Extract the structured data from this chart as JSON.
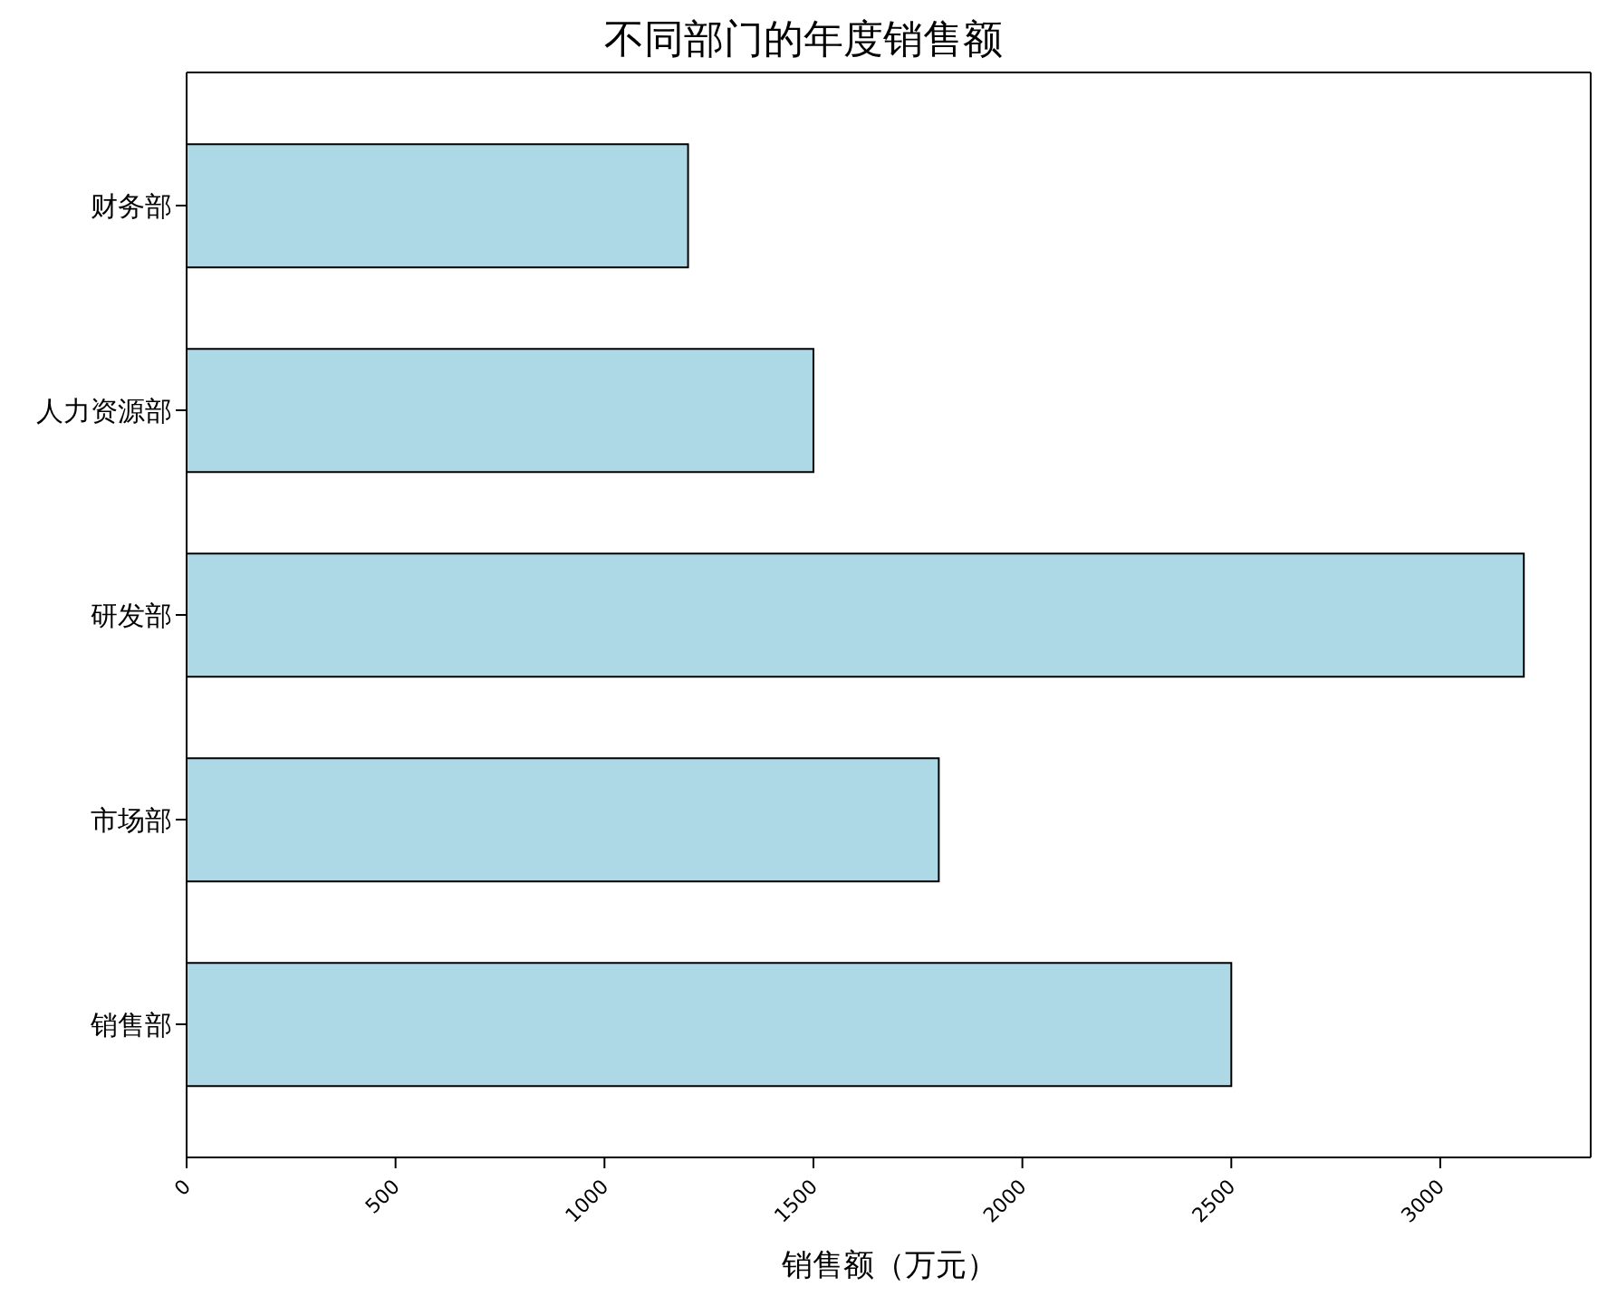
{
  "chart_data": {
    "type": "bar",
    "orientation": "horizontal",
    "title": "不同部门的年度销售额",
    "xlabel": "销售额（万元）",
    "categories": [
      "财务部",
      "人力资源部",
      "研发部",
      "市场部",
      "销售部"
    ],
    "values": [
      1200,
      1500,
      3200,
      1800,
      2500
    ],
    "color": "#add8e6",
    "xlim": [
      0,
      3360
    ],
    "xticks": [
      0,
      500,
      1000,
      1500,
      2000,
      2500,
      3000
    ],
    "grid": false,
    "legend": false
  }
}
